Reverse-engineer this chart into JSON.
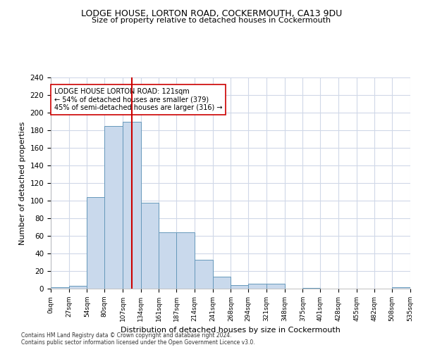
{
  "title1": "LODGE HOUSE, LORTON ROAD, COCKERMOUTH, CA13 9DU",
  "title2": "Size of property relative to detached houses in Cockermouth",
  "xlabel": "Distribution of detached houses by size in Cockermouth",
  "ylabel": "Number of detached properties",
  "bar_edges": [
    0,
    27,
    54,
    80,
    107,
    134,
    161,
    187,
    214,
    241,
    268,
    294,
    321,
    348,
    375,
    401,
    428,
    455,
    482,
    508,
    535
  ],
  "bar_heights": [
    2,
    3,
    104,
    185,
    190,
    98,
    64,
    64,
    33,
    14,
    4,
    6,
    6,
    0,
    1,
    0,
    0,
    0,
    0,
    2
  ],
  "bar_color": "#c9d9ec",
  "bar_edge_color": "#6699bb",
  "vline_x": 121,
  "vline_color": "#cc0000",
  "annotation_text": "LODGE HOUSE LORTON ROAD: 121sqm\n← 54% of detached houses are smaller (379)\n45% of semi-detached houses are larger (316) →",
  "annotation_box_color": "#ffffff",
  "annotation_box_edge": "#cc0000",
  "ylim": [
    0,
    240
  ],
  "yticks": [
    0,
    20,
    40,
    60,
    80,
    100,
    120,
    140,
    160,
    180,
    200,
    220,
    240
  ],
  "tick_labels": [
    "0sqm",
    "27sqm",
    "54sqm",
    "80sqm",
    "107sqm",
    "134sqm",
    "161sqm",
    "187sqm",
    "214sqm",
    "241sqm",
    "268sqm",
    "294sqm",
    "321sqm",
    "348sqm",
    "375sqm",
    "401sqm",
    "428sqm",
    "455sqm",
    "482sqm",
    "508sqm",
    "535sqm"
  ],
  "footnote1": "Contains HM Land Registry data © Crown copyright and database right 2024.",
  "footnote2": "Contains public sector information licensed under the Open Government Licence v3.0.",
  "bg_color": "#ffffff",
  "grid_color": "#d0d8e8"
}
